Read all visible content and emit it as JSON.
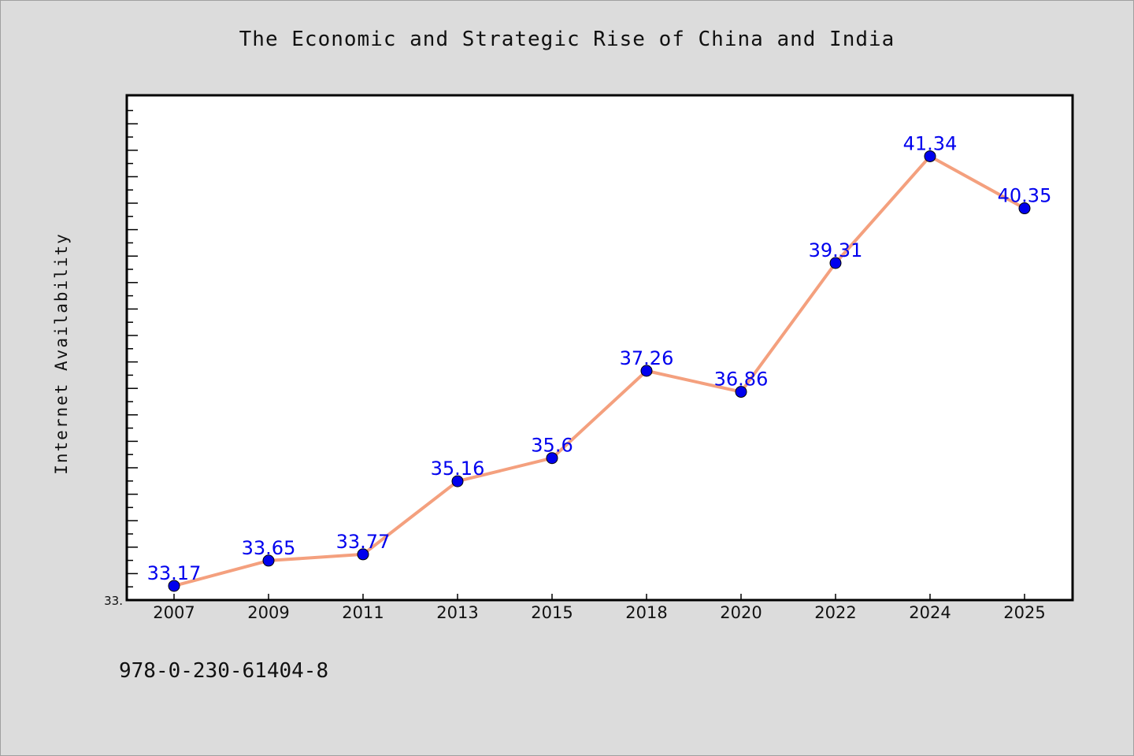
{
  "chart_data": {
    "type": "line",
    "title": "The Economic and Strategic Rise of China and India",
    "ylabel": "Internet Availability",
    "xlabel": "",
    "categories": [
      "2007",
      "2009",
      "2011",
      "2013",
      "2015",
      "2018",
      "2020",
      "2022",
      "2024",
      "2025"
    ],
    "series": [
      {
        "values": [
          33.17,
          33.65,
          33.77,
          35.16,
          35.6,
          37.26,
          36.86,
          39.31,
          41.34,
          40.35
        ],
        "data_labels": [
          "33.17",
          "33.65",
          "33.77",
          "35.16",
          "35.6",
          "37.26",
          "36.86",
          "39.31",
          "41.34",
          "40.35"
        ]
      }
    ],
    "ylim": [
      32.9,
      42.5
    ],
    "y_tick_label": "33.",
    "grid": false,
    "line_color": "#f4a07e",
    "marker_color": "#0000ee",
    "label_color": "#0000ee"
  },
  "footer": {
    "code": "978-0-230-61404-8"
  }
}
